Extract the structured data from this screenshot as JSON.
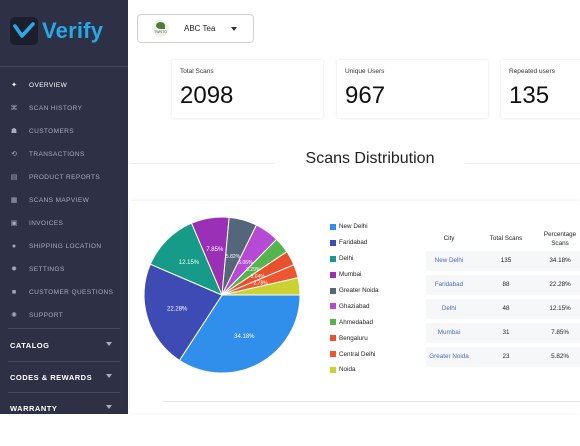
{
  "app": {
    "name": "Verify"
  },
  "sidebar": {
    "items": [
      {
        "label": "OVERVIEW",
        "icon": "dashboard-icon",
        "glyph": "✦",
        "active": true
      },
      {
        "label": "SCAN HISTORY",
        "icon": "scan-icon",
        "glyph": "⌘",
        "active": false
      },
      {
        "label": "CUSTOMERS",
        "icon": "users-icon",
        "glyph": "☗",
        "active": false
      },
      {
        "label": "TRANSACTIONS",
        "icon": "transactions-icon",
        "glyph": "⟲",
        "active": false
      },
      {
        "label": "PRODUCT REPORTS",
        "icon": "report-icon",
        "glyph": "▤",
        "active": false
      },
      {
        "label": "SCANS MAPVIEW",
        "icon": "map-icon",
        "glyph": "▦",
        "active": false
      },
      {
        "label": "INVOICES",
        "icon": "invoice-icon",
        "glyph": "▣",
        "active": false
      },
      {
        "label": "SHIPPING LOCATION",
        "icon": "location-icon",
        "glyph": "●",
        "active": false
      },
      {
        "label": "SETTINGS",
        "icon": "gear-icon",
        "glyph": "✹",
        "active": false
      },
      {
        "label": "CUSTOMER QUESTIONS",
        "icon": "chat-icon",
        "glyph": "■",
        "active": false
      },
      {
        "label": "SUPPORT",
        "icon": "support-icon",
        "glyph": "✺",
        "active": false
      }
    ],
    "sections": [
      {
        "label": "CATALOG"
      },
      {
        "label": "CODES & REWARDS"
      },
      {
        "label": "WARRANTY"
      }
    ]
  },
  "brand_selector": {
    "value": "ABC Tea",
    "logo_text": "TWNTO"
  },
  "stats": [
    {
      "label": "Total Scans",
      "value": "2098"
    },
    {
      "label": "Unique Users",
      "value": "967"
    },
    {
      "label": "Repeated users",
      "value": "135"
    }
  ],
  "distribution": {
    "title": "Scans Distribution",
    "table_headers": {
      "city": "City",
      "total": "Total Scans",
      "percent": "Percentage Scans"
    },
    "table_rows": [
      {
        "city": "New Delhi",
        "total": "135",
        "percent": "34.18%"
      },
      {
        "city": "Faridabad",
        "total": "88",
        "percent": "22.28%"
      },
      {
        "city": "Delhi",
        "total": "48",
        "percent": "12.15%"
      },
      {
        "city": "Mumbai",
        "total": "31",
        "percent": "7.85%"
      },
      {
        "city": "Greater Noida",
        "total": "23",
        "percent": "5.82%"
      }
    ]
  },
  "chart_data": {
    "type": "pie",
    "categories": [
      "New Delhi",
      "Faridabad",
      "Delhi",
      "Mumbai",
      "Greater Noida",
      "Ghaziabad",
      "Ahmedabad",
      "Bengaluru",
      "Central Delhi",
      "Noida"
    ],
    "values": [
      34.18,
      22.28,
      12.15,
      7.85,
      5.82,
      5.06,
      3.29,
      3.04,
      2.78,
      3.55
    ],
    "slice_labels": [
      "34.18%",
      "22.28%",
      "12.15%",
      "7.85%",
      "5.82%",
      "5.06%",
      "3.29%",
      "3.04%",
      "2.78%",
      ""
    ],
    "colors": [
      "#2f8fea",
      "#3f4bb5",
      "#159b87",
      "#9a30b5",
      "#53667a",
      "#b54ad4",
      "#56b44f",
      "#e8512e",
      "#f0562e",
      "#cad333"
    ],
    "legend_position": "right"
  }
}
